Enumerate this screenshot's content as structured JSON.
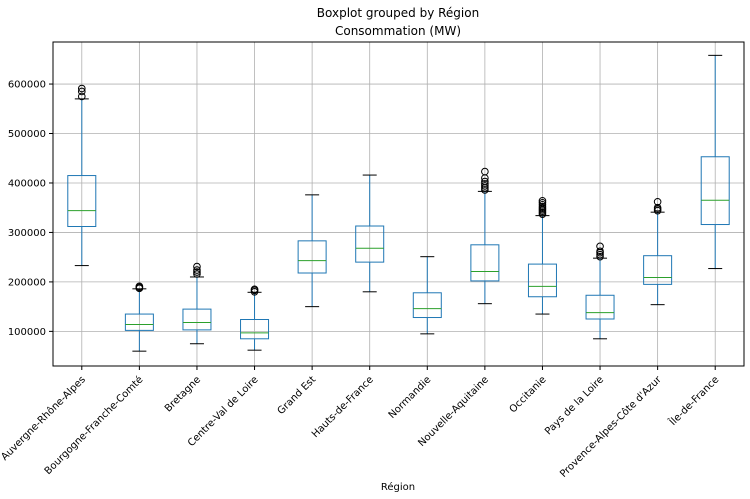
{
  "chart_data": {
    "type": "boxplot",
    "suptitle": "Boxplot grouped by Région",
    "title": "Consommation (MW)",
    "xlabel": "Région",
    "ylabel": "",
    "grid": true,
    "ylim": [
      30000,
      685000
    ],
    "yticks": [
      100000,
      200000,
      300000,
      400000,
      500000,
      600000
    ],
    "ytick_labels": [
      "100000",
      "200000",
      "300000",
      "400000",
      "500000",
      "600000"
    ],
    "colors": {
      "box": "#1f77b4",
      "median": "#2ca02c",
      "whisker": "#000000",
      "grid": "#b0b0b0"
    },
    "categories": [
      "Auvergne-Rhône-Alpes",
      "Bourgogne-Franche-Comté",
      "Bretagne",
      "Centre-Val de Loire",
      "Grand Est",
      "Hauts-de-France",
      "Normandie",
      "Nouvelle-Aquitaine",
      "Occitanie",
      "Pays de la Loire",
      "Provence-Alpes-Côte d'Azur",
      "Île-de-France"
    ],
    "boxes": [
      {
        "whislo": 233000,
        "q1": 312000,
        "med": 344000,
        "q3": 415000,
        "whishi": 570000,
        "fliers": [
          575000,
          585000,
          591000
        ]
      },
      {
        "whislo": 60000,
        "q1": 102000,
        "med": 114000,
        "q3": 135000,
        "whishi": 186000,
        "fliers": [
          187000,
          189000,
          191000
        ]
      },
      {
        "whislo": 75000,
        "q1": 103000,
        "med": 118000,
        "q3": 145000,
        "whishi": 210000,
        "fliers": [
          216000,
          220000,
          224000,
          231000
        ]
      },
      {
        "whislo": 62000,
        "q1": 85000,
        "med": 97000,
        "q3": 124000,
        "whishi": 179000,
        "fliers": [
          180000,
          183000,
          185000
        ]
      },
      {
        "whislo": 150000,
        "q1": 218000,
        "med": 243000,
        "q3": 283000,
        "whishi": 376000,
        "fliers": []
      },
      {
        "whislo": 180000,
        "q1": 240000,
        "med": 268000,
        "q3": 313000,
        "whishi": 416000,
        "fliers": []
      },
      {
        "whislo": 95000,
        "q1": 128000,
        "med": 146000,
        "q3": 178000,
        "whishi": 251000,
        "fliers": []
      },
      {
        "whislo": 156000,
        "q1": 202000,
        "med": 221000,
        "q3": 275000,
        "whishi": 383000,
        "fliers": [
          386000,
          390000,
          394000,
          398000,
          403000,
          410000,
          423000
        ]
      },
      {
        "whislo": 135000,
        "q1": 170000,
        "med": 191000,
        "q3": 236000,
        "whishi": 334000,
        "fliers": [
          337000,
          340000,
          343000,
          346000,
          349000,
          352000,
          356000,
          360000,
          364000
        ]
      },
      {
        "whislo": 85000,
        "q1": 125000,
        "med": 138000,
        "q3": 173000,
        "whishi": 248000,
        "fliers": [
          251000,
          255000,
          259000,
          262000,
          272000
        ]
      },
      {
        "whislo": 154000,
        "q1": 195000,
        "med": 209000,
        "q3": 253000,
        "whishi": 341000,
        "fliers": [
          344000,
          347000,
          350000,
          362000
        ]
      },
      {
        "whislo": 227000,
        "q1": 316000,
        "med": 365000,
        "q3": 453000,
        "whishi": 658000,
        "fliers": []
      }
    ]
  }
}
